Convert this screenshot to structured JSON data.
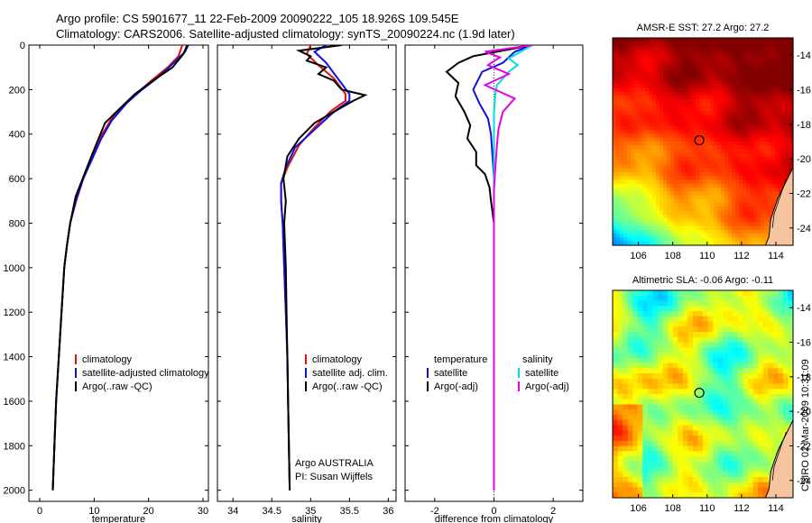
{
  "header": {
    "line1": "Argo profile: CS 5901677_11 22-Feb-2009 20090222_105 18.926S 109.545E",
    "line2": "Climatology: CARS2006. Satellite-adjusted climatology: synTS_20090224.nc (1.9d later)"
  },
  "colors": {
    "climatology": "#e01010",
    "satellite": "#1010e0",
    "argo": "#000000",
    "sat_salinity": "#00dde6",
    "argo_salinity_adj": "#e600e6"
  },
  "chart_data": [
    {
      "type": "line",
      "panel": "temperature",
      "xlabel": "temperature",
      "xlim": [
        -2,
        31
      ],
      "xticks": [
        0,
        10,
        20,
        30
      ],
      "ylim": [
        2050,
        0
      ],
      "yticks": [
        0,
        200,
        400,
        600,
        800,
        1000,
        1200,
        1400,
        1600,
        1800,
        2000
      ],
      "legend": [
        "climatology",
        "satellite-adjusted climatology",
        "Argo(..raw -QC)"
      ],
      "legend_keys": [
        "climatology",
        "satellite",
        "argo"
      ],
      "series": [
        {
          "name": "climatology",
          "key": "climatology",
          "points": [
            [
              26.2,
              0
            ],
            [
              25.5,
              50
            ],
            [
              23.5,
              100
            ],
            [
              21,
              150
            ],
            [
              18.6,
              200
            ],
            [
              16.2,
              250
            ],
            [
              13.2,
              330
            ],
            [
              11.5,
              400
            ],
            [
              9.7,
              500
            ],
            [
              8,
              600
            ],
            [
              6.7,
              700
            ],
            [
              5.6,
              800
            ],
            [
              5,
              900
            ],
            [
              4.5,
              1000
            ],
            [
              4,
              1200
            ],
            [
              3.5,
              1400
            ],
            [
              3,
              1600
            ],
            [
              2.7,
              1800
            ],
            [
              2.4,
              2000
            ]
          ]
        },
        {
          "name": "satellite-adjusted climatology",
          "key": "satellite",
          "points": [
            [
              27.3,
              0
            ],
            [
              26.7,
              30
            ],
            [
              24.2,
              90
            ],
            [
              21.5,
              150
            ],
            [
              18.8,
              200
            ],
            [
              16,
              260
            ],
            [
              13.2,
              340
            ],
            [
              11.3,
              420
            ],
            [
              9.5,
              520
            ],
            [
              8,
              600
            ],
            [
              6.6,
              700
            ],
            [
              5.6,
              800
            ],
            [
              5,
              900
            ],
            [
              4.5,
              1000
            ],
            [
              4,
              1200
            ],
            [
              3.5,
              1400
            ],
            [
              3,
              1600
            ],
            [
              2.7,
              1800
            ],
            [
              2.4,
              2000
            ]
          ]
        },
        {
          "name": "Argo(..raw -QC)",
          "key": "argo",
          "points": [
            [
              27.1,
              0
            ],
            [
              26.4,
              40
            ],
            [
              24.4,
              100
            ],
            [
              20.8,
              160
            ],
            [
              17.5,
              220
            ],
            [
              14.5,
              290
            ],
            [
              12,
              350
            ],
            [
              10.8,
              420
            ],
            [
              9.5,
              500
            ],
            [
              8.2,
              580
            ],
            [
              6.6,
              680
            ],
            [
              5.6,
              800
            ],
            [
              5,
              900
            ],
            [
              4.5,
              1000
            ],
            [
              4,
              1200
            ],
            [
              3.5,
              1400
            ],
            [
              3,
              1600
            ],
            [
              2.7,
              1800
            ],
            [
              2.4,
              2000
            ]
          ]
        }
      ]
    },
    {
      "type": "line",
      "panel": "salinity",
      "xlabel": "salinity",
      "xlim": [
        33.8,
        36.1
      ],
      "xticks": [
        34,
        34.5,
        35,
        35.5,
        36
      ],
      "ylim": [
        2050,
        0
      ],
      "legend": [
        "climatology",
        "satellite adj. clim.",
        "Argo(..raw -QC)"
      ],
      "legend_keys": [
        "climatology",
        "satellite",
        "argo"
      ],
      "annotation": [
        "Argo AUSTRALIA",
        "PI: Susan Wijffels"
      ],
      "series": [
        {
          "name": "climatology",
          "key": "climatology",
          "points": [
            [
              35,
              0
            ],
            [
              34.95,
              40
            ],
            [
              35.1,
              90
            ],
            [
              35.3,
              150
            ],
            [
              35.45,
              220
            ],
            [
              35.45,
              250
            ],
            [
              35.25,
              300
            ],
            [
              35.05,
              370
            ],
            [
              34.85,
              450
            ],
            [
              34.7,
              550
            ],
            [
              34.62,
              620
            ],
            [
              34.62,
              700
            ],
            [
              34.64,
              800
            ],
            [
              34.66,
              1000
            ],
            [
              34.68,
              1200
            ],
            [
              34.7,
              1400
            ],
            [
              34.71,
              1600
            ],
            [
              34.72,
              1800
            ],
            [
              34.73,
              2000
            ]
          ]
        },
        {
          "name": "satellite adj. clim.",
          "key": "satellite",
          "points": [
            [
              35.2,
              0
            ],
            [
              35.05,
              30
            ],
            [
              35.2,
              80
            ],
            [
              35.35,
              150
            ],
            [
              35.5,
              220
            ],
            [
              35.5,
              250
            ],
            [
              35.3,
              300
            ],
            [
              35.05,
              380
            ],
            [
              34.8,
              460
            ],
            [
              34.68,
              550
            ],
            [
              34.62,
              620
            ],
            [
              34.62,
              700
            ],
            [
              34.64,
              800
            ],
            [
              34.66,
              1000
            ],
            [
              34.68,
              1200
            ],
            [
              34.7,
              1400
            ],
            [
              34.71,
              1600
            ],
            [
              34.72,
              1800
            ],
            [
              34.73,
              2000
            ]
          ]
        },
        {
          "name": "Argo(..raw -QC)",
          "key": "argo",
          "points": [
            [
              35.4,
              0
            ],
            [
              34.85,
              25
            ],
            [
              35.0,
              50
            ],
            [
              34.95,
              70
            ],
            [
              35.2,
              100
            ],
            [
              35.1,
              130
            ],
            [
              35.3,
              160
            ],
            [
              35.4,
              200
            ],
            [
              35.7,
              225
            ],
            [
              35.55,
              250
            ],
            [
              35.3,
              300
            ],
            [
              35.05,
              350
            ],
            [
              34.85,
              420
            ],
            [
              34.7,
              500
            ],
            [
              34.65,
              600
            ],
            [
              34.68,
              700
            ],
            [
              34.66,
              800
            ],
            [
              34.68,
              1000
            ],
            [
              34.69,
              1200
            ],
            [
              34.7,
              1400
            ],
            [
              34.71,
              1600
            ],
            [
              34.72,
              1800
            ],
            [
              34.73,
              2000
            ]
          ]
        }
      ]
    },
    {
      "type": "line",
      "panel": "difference",
      "xlabel": "difference from climatology",
      "xlim": [
        -3,
        3
      ],
      "xticks": [
        -2,
        0,
        2
      ],
      "ylim": [
        2050,
        0
      ],
      "legend_left_title": "temperature",
      "legend_right_title": "salinity",
      "legend_left": [
        "satellite",
        "Argo(-adj)"
      ],
      "legend_left_keys": [
        "satellite",
        "argo"
      ],
      "legend_right": [
        "satellite",
        "Argo(-adj)"
      ],
      "legend_right_keys": [
        "sat_salinity",
        "argo_salinity_adj"
      ],
      "series": [
        {
          "name": "temperature satellite",
          "key": "satellite",
          "points": [
            [
              1.3,
              0
            ],
            [
              0.7,
              30
            ],
            [
              0.3,
              80
            ],
            [
              -0.4,
              120
            ],
            [
              -0.7,
              200
            ],
            [
              -0.5,
              260
            ],
            [
              -0.2,
              330
            ],
            [
              -0.1,
              400
            ],
            [
              -0.05,
              500
            ],
            [
              0,
              600
            ],
            [
              0,
              800
            ],
            [
              0,
              1000
            ],
            [
              0,
              1400
            ],
            [
              0,
              2000
            ]
          ]
        },
        {
          "name": "temperature Argo(-adj)",
          "key": "argo",
          "points": [
            [
              1.3,
              0
            ],
            [
              0.5,
              20
            ],
            [
              -0.7,
              50
            ],
            [
              -1.2,
              80
            ],
            [
              -1.6,
              120
            ],
            [
              -1.2,
              170
            ],
            [
              -1.3,
              230
            ],
            [
              -1.0,
              300
            ],
            [
              -0.8,
              360
            ],
            [
              -0.9,
              420
            ],
            [
              -0.6,
              480
            ],
            [
              -0.6,
              540
            ],
            [
              -0.3,
              580
            ],
            [
              -0.15,
              640
            ],
            [
              -0.1,
              700
            ],
            [
              0,
              800
            ],
            [
              0,
              1000
            ],
            [
              0,
              1400
            ],
            [
              0,
              2000
            ]
          ]
        },
        {
          "name": "salinity satellite",
          "key": "sat_salinity",
          "points": [
            [
              1.3,
              0
            ],
            [
              0.5,
              60
            ],
            [
              0.8,
              90
            ],
            [
              0.5,
              120
            ],
            [
              0.3,
              150
            ],
            [
              0.1,
              180
            ],
            [
              0.05,
              220
            ],
            [
              0,
              300
            ],
            [
              0,
              400
            ],
            [
              0,
              600
            ],
            [
              0,
              1000
            ],
            [
              0,
              2000
            ]
          ]
        },
        {
          "name": "salinity Argo(-adj)",
          "key": "argo_salinity_adj",
          "points": [
            [
              1.3,
              0
            ],
            [
              -0.3,
              30
            ],
            [
              0.2,
              55
            ],
            [
              -0.2,
              90
            ],
            [
              0.5,
              130
            ],
            [
              -0.3,
              180
            ],
            [
              0.7,
              240
            ],
            [
              0.3,
              300
            ],
            [
              0.15,
              380
            ],
            [
              0.1,
              450
            ],
            [
              0.05,
              550
            ],
            [
              0,
              650
            ],
            [
              0,
              1000
            ],
            [
              0,
              2000
            ]
          ]
        }
      ]
    },
    {
      "type": "heatmap",
      "panel": "sst",
      "title": "AMSR-E SST: 27.2 Argo: 27.2",
      "xticks": [
        106,
        108,
        110,
        112,
        114
      ],
      "yticks": [
        -14,
        -16,
        -18,
        -20,
        -22,
        -24
      ],
      "xlim": [
        104.5,
        115
      ],
      "ylim": [
        -25,
        -13
      ],
      "argo_position": [
        109.545,
        -18.926
      ]
    },
    {
      "type": "heatmap",
      "panel": "sla",
      "title": "Altimetric SLA: -0.06 Argo: -0.11",
      "xticks": [
        106,
        108,
        110,
        112,
        114
      ],
      "yticks": [
        -14,
        -16,
        -18,
        -20,
        -22,
        -24
      ],
      "xlim": [
        104.5,
        115
      ],
      "ylim": [
        -25,
        -13
      ],
      "argo_position": [
        109.545,
        -18.926
      ]
    }
  ],
  "side_stamp": "CSIRO 02-Mar-2009 10:31:09"
}
